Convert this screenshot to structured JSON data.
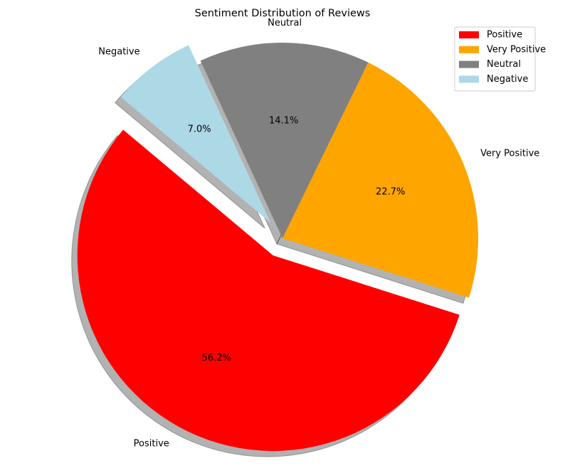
{
  "chart_data": {
    "type": "pie",
    "title": "Sentiment Distribution of Reviews",
    "labels": [
      "Positive",
      "Very Positive",
      "Neutral",
      "Negative"
    ],
    "values": [
      56.2,
      22.7,
      14.1,
      7.0
    ],
    "percent_labels": [
      "56.2%",
      "22.7%",
      "14.1%",
      "7.0%"
    ],
    "colors": [
      "#ff0000",
      "#ffa500",
      "#808080",
      "#add8e6"
    ],
    "exploded": [
      "Positive",
      "Negative"
    ],
    "shadow": true,
    "legend": {
      "placement": "top-right",
      "entries": [
        "Positive",
        "Very Positive",
        "Neutral",
        "Negative"
      ]
    }
  }
}
